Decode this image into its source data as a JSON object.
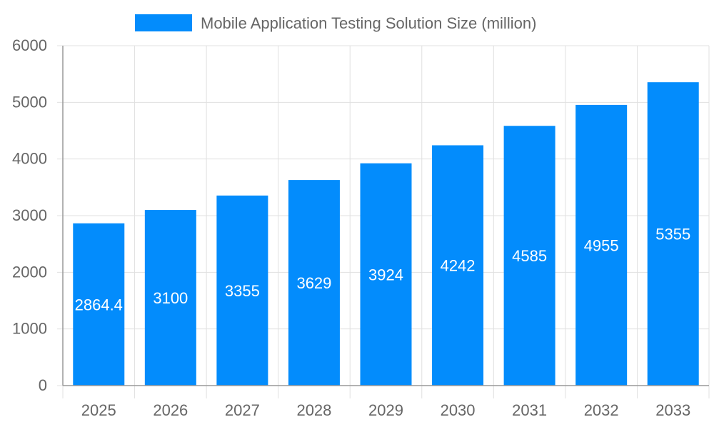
{
  "chart_data": {
    "type": "bar",
    "title": "",
    "xlabel": "",
    "ylabel": "",
    "categories": [
      "2025",
      "2026",
      "2027",
      "2028",
      "2029",
      "2030",
      "2031",
      "2032",
      "2033"
    ],
    "series": [
      {
        "name": "Mobile Application Testing Solution Size (million)",
        "values": [
          2864.4,
          3100,
          3355,
          3629,
          3924,
          4242,
          4585,
          4955,
          5355
        ],
        "labels": [
          "2864.4",
          "3100",
          "3355",
          "3629",
          "3924",
          "4242",
          "4585",
          "4955",
          "5355"
        ]
      }
    ],
    "ylim": [
      0,
      6000
    ],
    "yticks": [
      0,
      1000,
      2000,
      3000,
      4000,
      5000,
      6000
    ],
    "grid": true,
    "legend_position": "top",
    "colors": {
      "bar": "#038cfc",
      "grid": "#e0e0e0",
      "axis": "#999999",
      "text": "#666666",
      "label": "#ffffff"
    }
  }
}
